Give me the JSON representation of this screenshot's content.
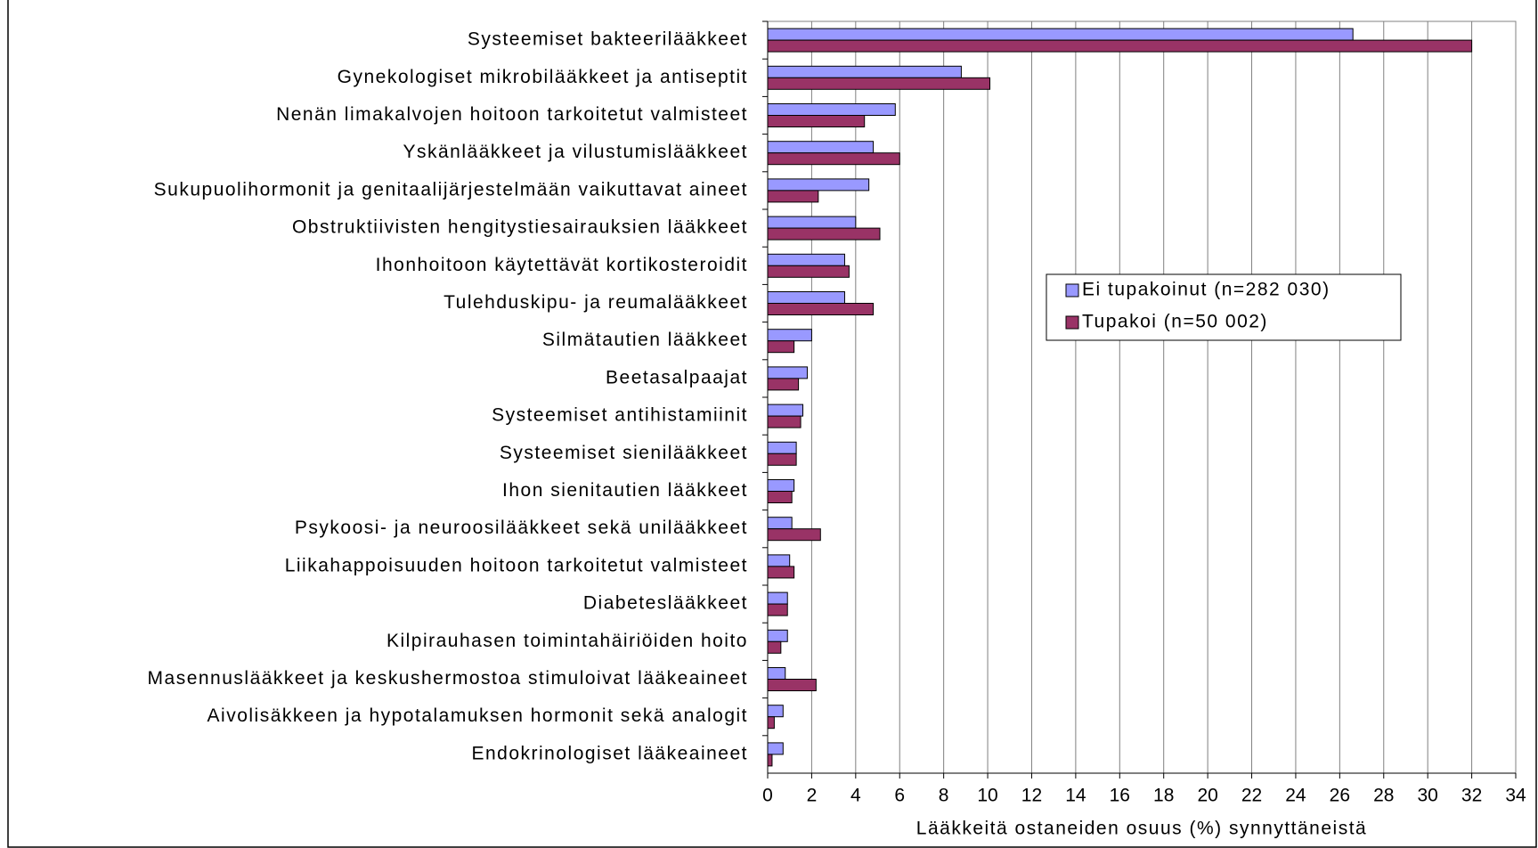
{
  "chart_data": {
    "type": "hbar",
    "xlabel": "Lääkkeitä ostaneiden osuus (%) synnyttäneistä",
    "categories": [
      "Systeemiset bakteerilääkkeet",
      "Gynekologiset mikrobilääkkeet ja antiseptit",
      "Nenän limakalvojen hoitoon tarkoitetut valmisteet",
      "Yskänlääkkeet ja vilustumislääkkeet",
      "Sukupuolihormonit ja genitaalijärjestelmään vaikuttavat aineet",
      "Obstruktiivisten hengitystiesairauksien lääkkeet",
      "Ihonhoitoon käytettävät kortikosteroidit",
      "Tulehduskipu- ja reumalääkkeet",
      "Silmätautien lääkkeet",
      "Beetasalpaajat",
      "Systeemiset antihistamiinit",
      "Systeemiset sienilääkkeet",
      "Ihon sienitautien lääkkeet",
      "Psykoosi- ja neuroosilääkkeet sekä unilääkkeet",
      "Liikahappoisuuden hoitoon tarkoitetut valmisteet",
      "Diabeteslääkkeet",
      "Kilpirauhasen toimintahäiriöiden hoito",
      "Masennuslääkkeet ja keskushermostoa stimuloivat lääkeaineet",
      "Aivolisäkkeen ja hypotalamuksen hormonit sekä analogit",
      "Endokrinologiset lääkeaineet"
    ],
    "series": [
      {
        "name": "Ei tupakoinut (n=282 030)",
        "color": "#9999ff",
        "values": [
          26.6,
          8.8,
          5.8,
          4.8,
          4.6,
          4.0,
          3.5,
          3.5,
          2.0,
          1.8,
          1.6,
          1.3,
          1.2,
          1.1,
          1.0,
          0.9,
          0.9,
          0.8,
          0.7,
          0.7
        ]
      },
      {
        "name": "Tupakoi (n=50 002)",
        "color": "#993366",
        "values": [
          32.0,
          10.1,
          4.4,
          6.0,
          2.3,
          5.1,
          3.7,
          4.8,
          1.2,
          1.4,
          1.5,
          1.3,
          1.1,
          2.4,
          1.2,
          0.9,
          0.6,
          2.2,
          0.3,
          0.2
        ]
      }
    ],
    "xlim": [
      0,
      34
    ],
    "xticks": [
      0,
      2,
      4,
      6,
      8,
      10,
      12,
      14,
      16,
      18,
      20,
      22,
      24,
      26,
      28,
      30,
      32,
      34
    ],
    "grid": true,
    "legend": "right"
  }
}
